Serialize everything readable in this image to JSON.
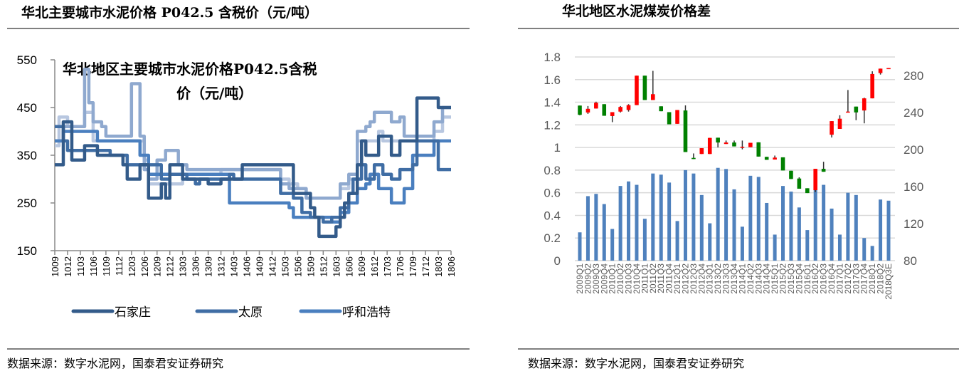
{
  "left_panel": {
    "header": "华北主要城市水泥价格 P042.5 含税价（元/吨）",
    "source": "数据来源：数字水泥网，国泰君安证券研究"
  },
  "right_panel": {
    "header": "华北地区水泥煤炭价格差",
    "source": "数据来源：数字水泥网，国泰君安证券研究"
  },
  "chart_data": [
    {
      "type": "line",
      "step": true,
      "title_line1": "华北地区主要城市水泥价格P042.5含税",
      "title_line2": "价（元/吨）",
      "ylim": [
        150,
        550
      ],
      "yticks": [
        "550",
        "450",
        "350",
        "250",
        "150"
      ],
      "xticks": [
        "1009",
        "1012",
        "1103",
        "1106",
        "1109",
        "1112",
        "1203",
        "1206",
        "1209",
        "1212",
        "1303",
        "1306",
        "1309",
        "1312",
        "1403",
        "1406",
        "1409",
        "1412",
        "1503",
        "1506",
        "1509",
        "1512",
        "1603",
        "1606",
        "1609",
        "1612",
        "1703",
        "1706",
        "1709",
        "1712",
        "1803",
        "1806"
      ],
      "grid": false,
      "legend_position": "bottom",
      "series": [
        {
          "name": "石家庄",
          "color": "#335b8a",
          "points": [
            [
              "1009",
              330
            ],
            [
              "1011",
              420
            ],
            [
              "1101",
              340
            ],
            [
              "1104",
              370
            ],
            [
              "1107",
              350
            ],
            [
              "1201",
              330
            ],
            [
              "1202",
              300
            ],
            [
              "1205",
              330
            ],
            [
              "1207",
              260
            ],
            [
              "1210",
              290
            ],
            [
              "1211",
              260
            ],
            [
              "1212",
              330
            ],
            [
              "1303",
              300
            ],
            [
              "1309",
              290
            ],
            [
              "1312",
              300
            ],
            [
              "1405",
              330
            ],
            [
              "1505",
              270
            ],
            [
              "1509",
              240
            ],
            [
              "1510",
              220
            ],
            [
              "1511",
              180
            ],
            [
              "1603",
              200
            ],
            [
              "1604",
              220
            ],
            [
              "1605",
              250
            ],
            [
              "1606",
              270
            ],
            [
              "1608",
              330
            ],
            [
              "1609",
              380
            ],
            [
              "1610",
              350
            ],
            [
              "1701",
              390
            ],
            [
              "1704",
              350
            ],
            [
              "1706",
              380
            ],
            [
              "1710",
              470
            ],
            [
              "1803",
              450
            ],
            [
              "1806",
              450
            ]
          ]
        },
        {
          "name": "太原",
          "color": "#3f6da4",
          "points": [
            [
              "1009",
              410
            ],
            [
              "1011",
              380
            ],
            [
              "1012",
              360
            ],
            [
              "1110",
              350
            ],
            [
              "1202",
              330
            ],
            [
              "1210",
              300
            ],
            [
              "1212",
              310
            ],
            [
              "1304",
              300
            ],
            [
              "1306",
              290
            ],
            [
              "1307",
              300
            ],
            [
              "1402",
              310
            ],
            [
              "1403",
              300
            ],
            [
              "1502",
              270
            ],
            [
              "1505",
              260
            ],
            [
              "1507",
              230
            ],
            [
              "1509",
              220
            ],
            [
              "1512",
              210
            ],
            [
              "1602",
              220
            ],
            [
              "1604",
              240
            ],
            [
              "1606",
              270
            ],
            [
              "1607",
              300
            ],
            [
              "1609",
              330
            ],
            [
              "1610",
              300
            ],
            [
              "1612",
              330
            ],
            [
              "1702",
              310
            ],
            [
              "1704",
              300
            ],
            [
              "1706",
              320
            ],
            [
              "1709",
              330
            ],
            [
              "1710",
              380
            ],
            [
              "1803",
              320
            ],
            [
              "1806",
              320
            ]
          ]
        },
        {
          "name": "呼和浩特",
          "color": "#4a7fbf",
          "points": [
            [
              "1009",
              380
            ],
            [
              "1011",
              400
            ],
            [
              "1107",
              380
            ],
            [
              "1205",
              350
            ],
            [
              "1207",
              310
            ],
            [
              "1402",
              250
            ],
            [
              "1504",
              240
            ],
            [
              "1505",
              220
            ],
            [
              "1602",
              210
            ],
            [
              "1604",
              230
            ],
            [
              "1606",
              250
            ],
            [
              "1608",
              280
            ],
            [
              "1610",
              290
            ],
            [
              "1611",
              310
            ],
            [
              "1701",
              280
            ],
            [
              "1704",
              250
            ],
            [
              "1707",
              280
            ],
            [
              "1709",
              350
            ],
            [
              "1802",
              380
            ],
            [
              "1806",
              380
            ]
          ]
        },
        {
          "color": "#8fa9cf",
          "points": [
            [
              "1009",
              380
            ],
            [
              "1011",
              410
            ],
            [
              "1104",
              530
            ],
            [
              "1105",
              460
            ],
            [
              "1106",
              420
            ],
            [
              "1108",
              410
            ],
            [
              "1109",
              390
            ],
            [
              "1203",
              500
            ],
            [
              "1205",
              390
            ],
            [
              "1206",
              320
            ],
            [
              "1207",
              300
            ],
            [
              "1209",
              340
            ],
            [
              "1211",
              360
            ],
            [
              "1302",
              330
            ],
            [
              "1304",
              320
            ],
            [
              "1502",
              290
            ],
            [
              "1504",
              280
            ],
            [
              "1508",
              260
            ],
            [
              "1604",
              290
            ],
            [
              "1606",
              310
            ],
            [
              "1608",
              400
            ],
            [
              "1610",
              410
            ],
            [
              "1611",
              420
            ],
            [
              "1612",
              440
            ],
            [
              "1704",
              420
            ],
            [
              "1706",
              430
            ],
            [
              "1707",
              390
            ],
            [
              "1802",
              420
            ],
            [
              "1804",
              450
            ],
            [
              "1806",
              450
            ]
          ]
        },
        {
          "color": "#b8c7e0",
          "points": [
            [
              "1009",
              370
            ],
            [
              "1010",
              430
            ],
            [
              "1012",
              410
            ],
            [
              "1104",
              440
            ],
            [
              "1106",
              380
            ],
            [
              "1206",
              340
            ],
            [
              "1207",
              290
            ],
            [
              "1303",
              310
            ],
            [
              "1312",
              320
            ],
            [
              "1502",
              300
            ],
            [
              "1504",
              290
            ],
            [
              "1506",
              280
            ],
            [
              "1508",
              270
            ],
            [
              "1509",
              260
            ],
            [
              "1604",
              280
            ],
            [
              "1606",
              300
            ],
            [
              "1608",
              380
            ],
            [
              "1701",
              400
            ],
            [
              "1702",
              380
            ],
            [
              "1802",
              400
            ],
            [
              "1804",
              430
            ],
            [
              "1806",
              430
            ]
          ]
        }
      ]
    },
    {
      "type": "bar+candlestick",
      "categories": [
        "2009Q1",
        "2009Q2",
        "2009Q3",
        "2009Q4",
        "2010Q1",
        "2010Q2",
        "2010Q3",
        "2010Q4",
        "2011Q1",
        "2011Q2",
        "2011Q3",
        "2011Q4",
        "2012Q1",
        "2012Q2",
        "2012Q3",
        "2012Q4",
        "2013Q1",
        "2013Q2",
        "2013Q3",
        "2013Q4",
        "2014Q1",
        "2014Q2",
        "2014Q3",
        "2014Q4",
        "2015Q1",
        "2015Q2",
        "2015Q3",
        "2015Q4",
        "2016Q1",
        "2016Q2",
        "2016Q3",
        "2016Q4",
        "2017Q1",
        "2017Q2",
        "2017Q3",
        "2017Q4",
        "2018Q1",
        "2018Q2",
        "2018Q3E"
      ],
      "left_axis": {
        "ylim": [
          0,
          1.8
        ],
        "ticks": [
          "1.8",
          "1.6",
          "1.4",
          "1.2",
          "1",
          "0.8",
          "0.6",
          "0.4",
          "0.2",
          "0"
        ]
      },
      "right_axis": {
        "ylim": [
          80,
          300
        ],
        "ticks": [
          "280",
          "240",
          "200",
          "160",
          "120",
          "80"
        ]
      },
      "grid": true,
      "bar_series": {
        "axis": "left",
        "color": "#4f81bd",
        "values": [
          0.25,
          0.57,
          0.59,
          0.5,
          0.28,
          0.66,
          0.7,
          0.67,
          0.37,
          0.77,
          0.76,
          0.69,
          0.35,
          0.8,
          0.77,
          0.58,
          0.33,
          0.82,
          0.81,
          0.63,
          0.3,
          0.75,
          0.74,
          0.51,
          0.23,
          0.66,
          0.61,
          0.47,
          0.27,
          0.63,
          0.67,
          0.46,
          0.23,
          0.6,
          0.58,
          0.2,
          0.13,
          0.54,
          0.53
        ]
      },
      "candle_series": {
        "axis": "right",
        "up_color": "#ff0000",
        "down_color": "#008000",
        "wick_color": "#333333",
        "open": [
          247.5,
          240,
          244.3,
          249,
          236.2,
          241,
          242.7,
          248,
          279.8,
          253.5,
          246.7,
          240.4,
          227.8,
          242.2,
          191,
          195.2,
          195.2,
          212.8,
          206,
          207.6,
          203,
          202.6,
          207.8,
          192.1,
          189.2,
          191.6,
          177.1,
          168.7,
          158.2,
          156.1,
          179.2,
          216,
          222.3,
          241,
          246.4,
          242.2,
          255.3,
          282.6,
          287.4
        ],
        "close": [
          237.5,
          244,
          250.6,
          236.5,
          240.4,
          246,
          248,
          279.8,
          253.5,
          259.8,
          241.4,
          227.3,
          242.7,
          197.3,
          189.7,
          201.5,
          212.6,
          207.6,
          207.6,
          203.4,
          203,
          207.3,
          192.4,
          188.9,
          191.3,
          177.4,
          168.2,
          157.7,
          153,
          179.2,
          176,
          230.7,
          233.3,
          241,
          240.1,
          255.3,
          281.6,
          287.4,
          288
        ],
        "high": [
          247.5,
          247,
          251.7,
          249,
          240.4,
          247,
          249,
          279.8,
          279.8,
          285,
          246.7,
          240.4,
          242.7,
          247.7,
          195.8,
          201.5,
          212.6,
          212.8,
          209.7,
          209.7,
          209.7,
          207.3,
          207.8,
          192.1,
          193.5,
          191.6,
          177.1,
          170,
          158.2,
          179.2,
          186.8,
          230.7,
          237,
          264.3,
          246.4,
          256,
          284.5,
          287.4,
          288
        ],
        "low": [
          237,
          238.5,
          244.3,
          236.5,
          229.6,
          240,
          241,
          248,
          253.5,
          253.5,
          241.4,
          227.3,
          227.8,
          197.3,
          189.7,
          195.2,
          195.2,
          202.3,
          206,
          203.4,
          200.2,
          202.6,
          192.4,
          188.9,
          189.2,
          177.4,
          168.2,
          157.7,
          153,
          154,
          176,
          213,
          222.3,
          240,
          231.7,
          228.3,
          255.3,
          281,
          287.4
        ]
      }
    }
  ]
}
